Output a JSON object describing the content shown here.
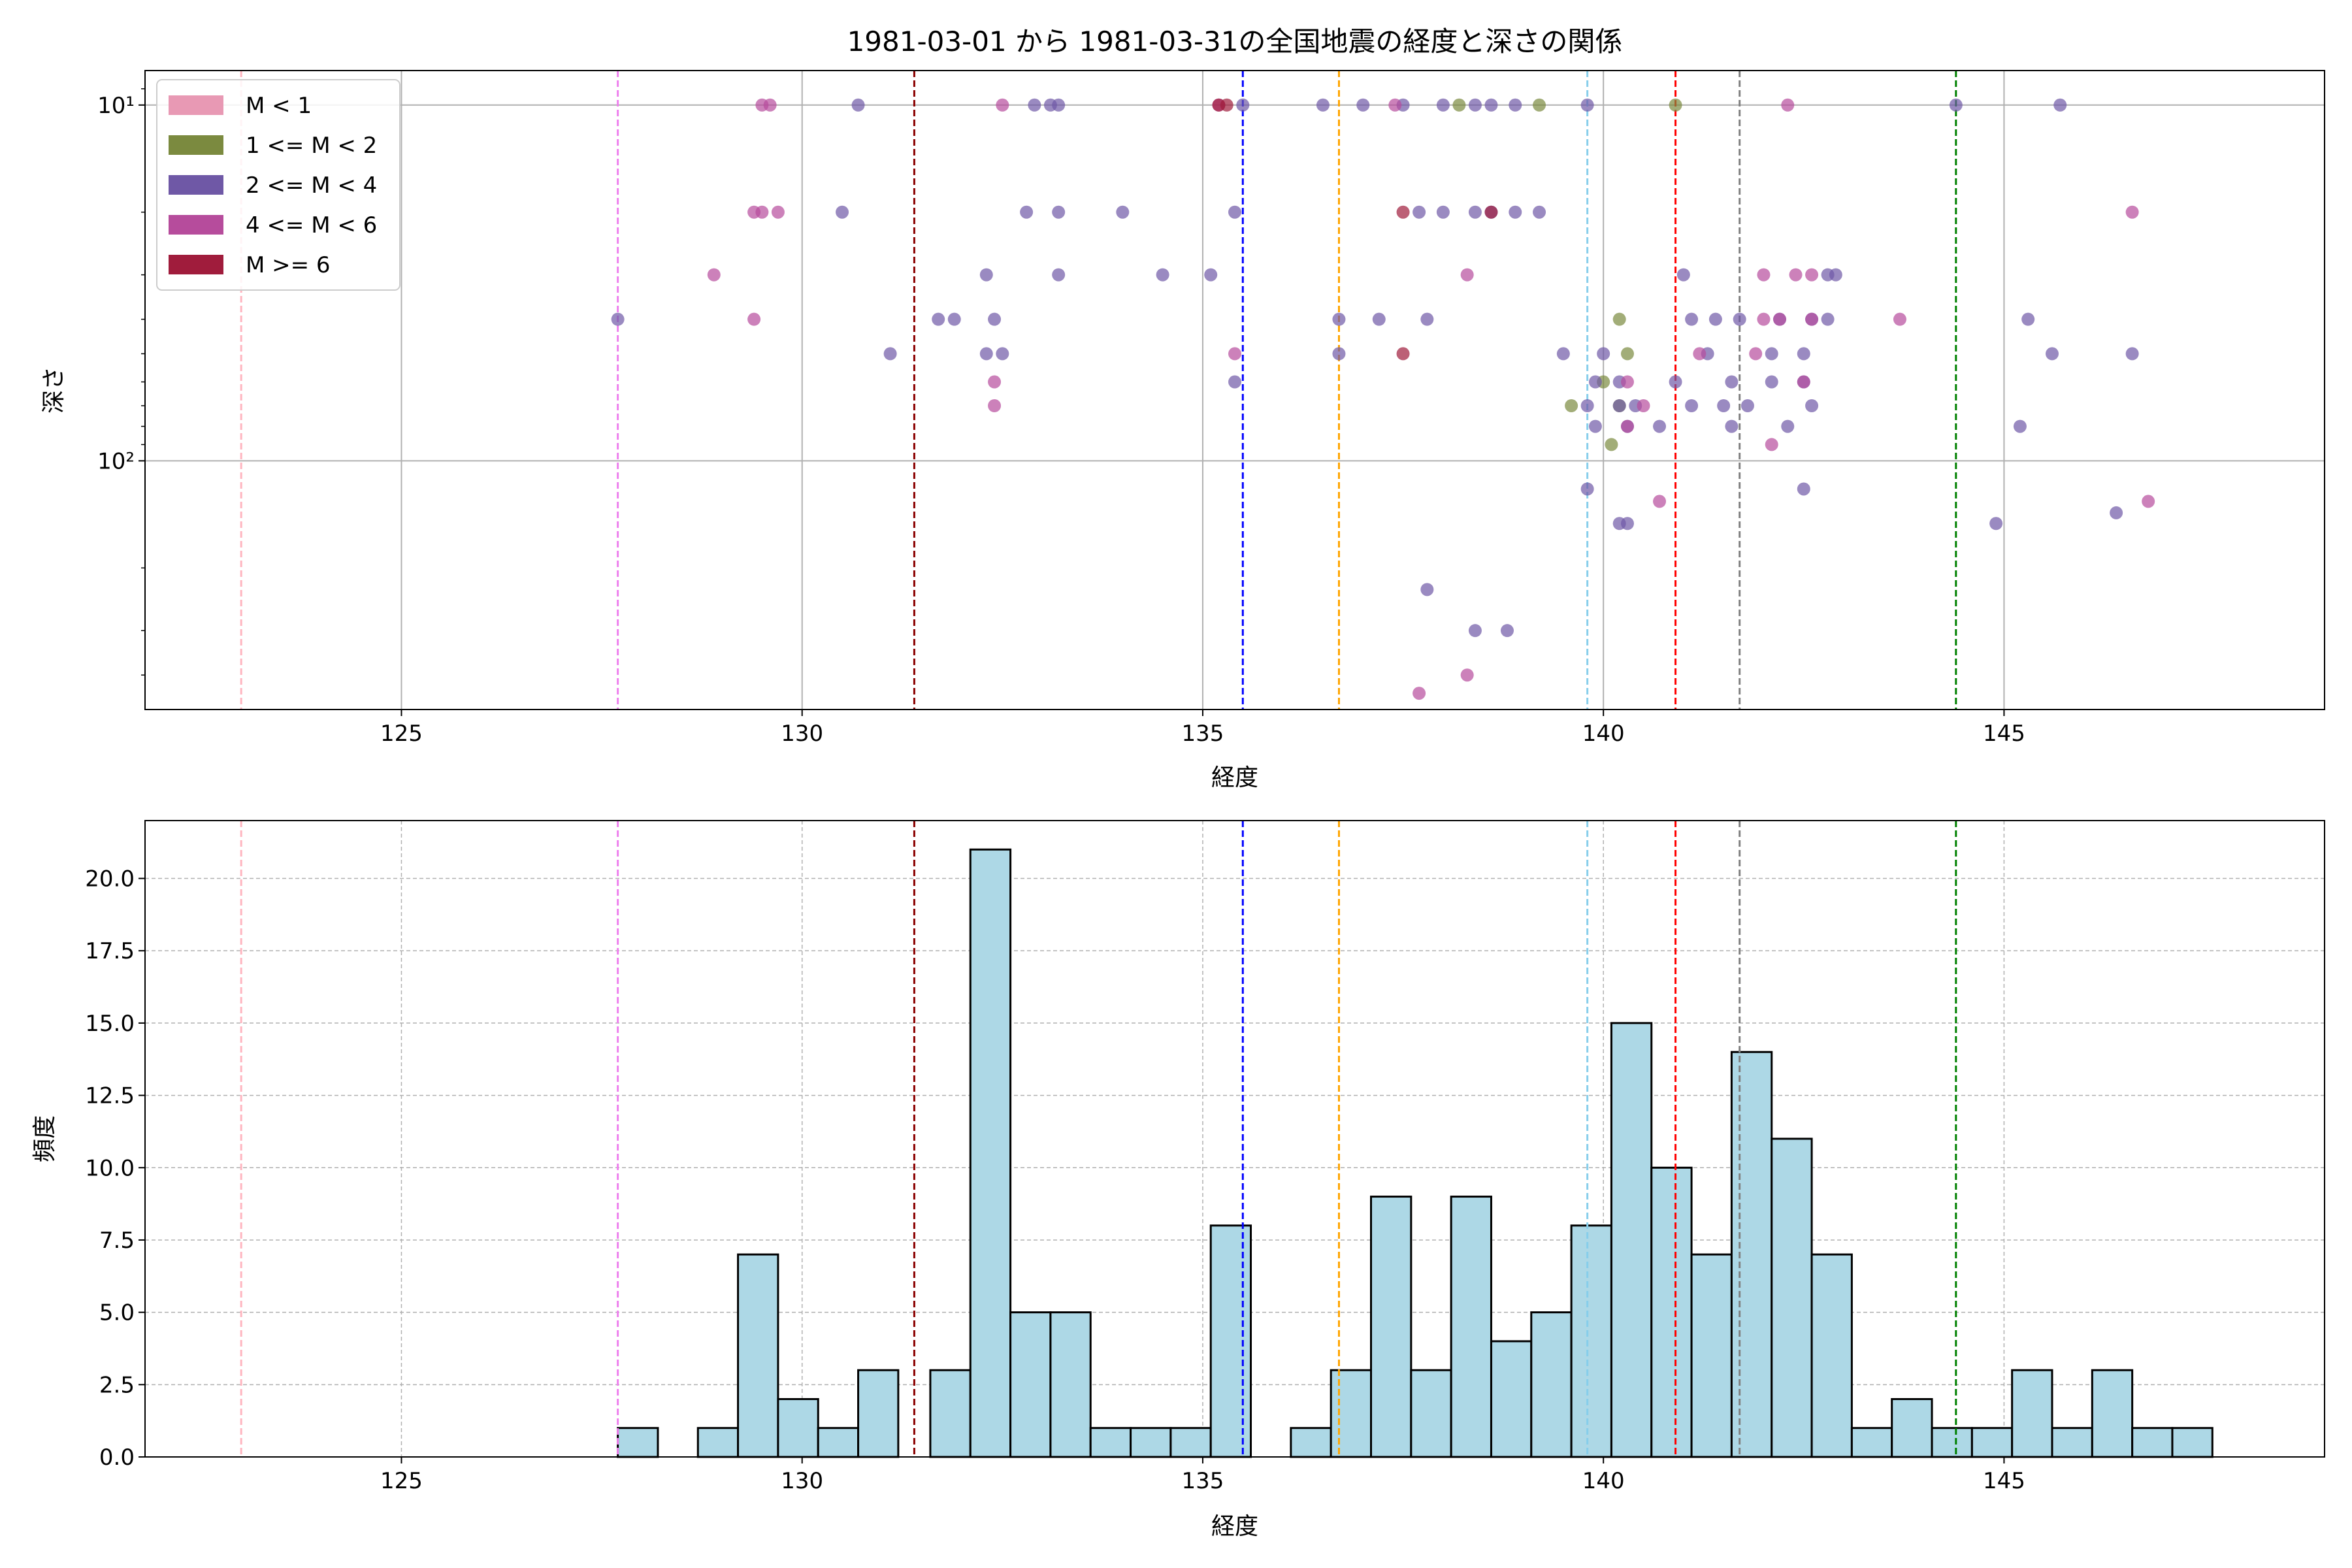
{
  "chart_data": [
    {
      "type": "scatter",
      "title": "1981-03-01 から 1981-03-31の全国地震の経度と深さの関係",
      "xlabel": "経度",
      "ylabel": "深さ",
      "xlim": [
        121.8,
        149.0
      ],
      "ylim": [
        500,
        8
      ],
      "yscale": "log",
      "invert_y": true,
      "x_ticks": [
        125,
        130,
        135,
        140,
        145
      ],
      "y_ticks": [
        {
          "value": 10,
          "label": "10¹"
        },
        {
          "value": 100,
          "label": "10²"
        }
      ],
      "grid": true,
      "legend_position": "upper-left",
      "legend": [
        {
          "label": "M < 1",
          "color": "#e899b4"
        },
        {
          "label": "1 <= M < 2",
          "color": "#7b8a3f"
        },
        {
          "label": "2 <= M < 4",
          "color": "#6f58a6"
        },
        {
          "label": "4 <= M < 6",
          "color": "#b64c9c"
        },
        {
          "label": "M >= 6",
          "color": "#a01c3c"
        }
      ],
      "vlines": [
        {
          "x": 123.0,
          "color": "#ffb6c1"
        },
        {
          "x": 127.7,
          "color": "#ee82ee"
        },
        {
          "x": 131.4,
          "color": "#8b0000"
        },
        {
          "x": 135.5,
          "color": "#0000ff"
        },
        {
          "x": 136.7,
          "color": "#ffa500"
        },
        {
          "x": 139.8,
          "color": "#87ceeb"
        },
        {
          "x": 140.9,
          "color": "#ff0000"
        },
        {
          "x": 141.7,
          "color": "#808080"
        },
        {
          "x": 144.4,
          "color": "#008000"
        }
      ],
      "series": [
        {
          "name": "1 <= M < 2",
          "color": "#7b8a3f",
          "x": [
            138.2,
            139.2,
            140.9,
            140.2,
            140.3,
            140.0,
            139.6,
            140.2,
            140.1
          ],
          "y": [
            10,
            10,
            10,
            40,
            50,
            60,
            70,
            70,
            90
          ]
        },
        {
          "name": "2 <= M < 4",
          "color": "#6f58a6",
          "x": [
            130.7,
            132.9,
            133.1,
            133.2,
            135.5,
            136.5,
            137.0,
            137.5,
            138.0,
            138.4,
            138.6,
            138.9,
            139.8,
            144.4,
            145.7,
            130.5,
            132.8,
            133.2,
            134.0,
            135.4,
            137.7,
            138.0,
            138.4,
            138.6,
            138.9,
            139.2,
            132.3,
            133.2,
            134.5,
            135.1,
            141.0,
            142.8,
            142.9,
            127.7,
            131.7,
            131.9,
            132.4,
            136.7,
            137.2,
            137.8,
            141.1,
            141.4,
            141.7,
            142.2,
            142.6,
            142.8,
            145.3,
            131.1,
            132.3,
            132.5,
            136.7,
            139.5,
            140.0,
            141.3,
            142.1,
            142.5,
            145.6,
            146.6,
            135.4,
            139.9,
            140.2,
            140.9,
            141.6,
            142.5,
            142.1,
            139.8,
            140.4,
            140.2,
            141.1,
            141.5,
            141.8,
            142.6,
            139.9,
            140.3,
            140.7,
            141.6,
            142.3,
            145.2,
            139.8,
            142.5,
            140.2,
            140.3,
            144.9,
            146.4,
            137.8,
            138.4,
            138.8
          ],
          "y": [
            10,
            10,
            10,
            10,
            10,
            10,
            10,
            10,
            10,
            10,
            10,
            10,
            10,
            10,
            10,
            20,
            20,
            20,
            20,
            20,
            20,
            20,
            20,
            20,
            20,
            20,
            30,
            30,
            30,
            30,
            30,
            30,
            30,
            40,
            40,
            40,
            40,
            40,
            40,
            40,
            40,
            40,
            40,
            40,
            40,
            40,
            40,
            50,
            50,
            50,
            50,
            50,
            50,
            50,
            50,
            50,
            50,
            50,
            60,
            60,
            60,
            60,
            60,
            60,
            60,
            70,
            70,
            70,
            70,
            70,
            70,
            70,
            80,
            80,
            80,
            80,
            80,
            80,
            120,
            120,
            150,
            150,
            150,
            140,
            230,
            300,
            300
          ]
        },
        {
          "name": "4 <= M < 6",
          "color": "#b64c9c",
          "x": [
            129.5,
            129.6,
            132.5,
            135.2,
            137.4,
            142.3,
            129.4,
            129.5,
            129.7,
            146.6,
            128.9,
            138.3,
            142.0,
            142.4,
            142.6,
            129.4,
            142.0,
            142.2,
            142.6,
            143.7,
            135.4,
            141.2,
            141.9,
            132.4,
            132.4,
            140.3,
            142.5,
            140.5,
            140.3,
            142.1,
            140.7,
            146.8,
            138.3,
            137.7
          ],
          "y": [
            10,
            10,
            10,
            10,
            10,
            10,
            20,
            20,
            20,
            20,
            30,
            30,
            30,
            30,
            30,
            40,
            40,
            40,
            40,
            40,
            50,
            50,
            50,
            60,
            70,
            60,
            60,
            70,
            80,
            90,
            130,
            130,
            400,
            450
          ]
        },
        {
          "name": "M >= 6",
          "color": "#a01c3c",
          "x": [
            135.2,
            135.3,
            137.5,
            138.6,
            137.5
          ],
          "y": [
            10,
            10,
            20,
            20,
            50
          ]
        }
      ]
    },
    {
      "type": "bar",
      "xlabel": "経度",
      "ylabel": "頻度",
      "xlim": [
        121.8,
        149.0
      ],
      "ylim": [
        0,
        22
      ],
      "x_ticks": [
        125,
        130,
        135,
        140,
        145
      ],
      "y_ticks": [
        0,
        2.5,
        5,
        7.5,
        10,
        12.5,
        15,
        17.5,
        20
      ],
      "y_tick_labels": [
        "0.0",
        "2.5",
        "5.0",
        "7.5",
        "10.0",
        "12.5",
        "15.0",
        "17.5",
        "20.0"
      ],
      "grid": true,
      "bar_color": "#add8e6",
      "bins": [
        [
          127.7,
          128.2,
          1
        ],
        [
          128.7,
          129.2,
          1
        ],
        [
          129.2,
          129.7,
          7
        ],
        [
          129.7,
          130.2,
          2
        ],
        [
          130.2,
          130.7,
          1
        ],
        [
          130.7,
          131.2,
          3
        ],
        [
          131.6,
          132.1,
          3
        ],
        [
          132.1,
          132.6,
          21
        ],
        [
          132.6,
          133.1,
          5
        ],
        [
          133.1,
          133.6,
          5
        ],
        [
          133.6,
          134.1,
          1
        ],
        [
          134.1,
          134.6,
          1
        ],
        [
          134.6,
          135.1,
          1
        ],
        [
          135.1,
          135.6,
          8
        ],
        [
          136.1,
          136.6,
          1
        ],
        [
          136.6,
          137.1,
          3
        ],
        [
          137.1,
          137.6,
          9
        ],
        [
          137.6,
          138.1,
          3
        ],
        [
          138.1,
          138.6,
          9
        ],
        [
          138.6,
          139.1,
          4
        ],
        [
          139.1,
          139.6,
          5
        ],
        [
          139.6,
          140.1,
          8
        ],
        [
          140.1,
          140.6,
          15
        ],
        [
          140.6,
          141.1,
          10
        ],
        [
          141.1,
          141.6,
          7
        ],
        [
          141.6,
          142.1,
          14
        ],
        [
          142.1,
          142.6,
          11
        ],
        [
          142.6,
          143.1,
          7
        ],
        [
          143.1,
          143.6,
          1
        ],
        [
          143.6,
          144.1,
          2
        ],
        [
          144.1,
          144.6,
          1
        ],
        [
          144.6,
          145.1,
          1
        ],
        [
          145.1,
          145.6,
          3
        ],
        [
          145.6,
          146.1,
          1
        ],
        [
          146.1,
          146.6,
          3
        ],
        [
          146.6,
          147.1,
          1
        ],
        [
          147.1,
          147.6,
          1
        ]
      ],
      "vlines": [
        {
          "x": 123.0,
          "color": "#ffb6c1"
        },
        {
          "x": 127.7,
          "color": "#ee82ee"
        },
        {
          "x": 131.4,
          "color": "#8b0000"
        },
        {
          "x": 135.5,
          "color": "#0000ff"
        },
        {
          "x": 136.7,
          "color": "#ffa500"
        },
        {
          "x": 139.8,
          "color": "#87ceeb"
        },
        {
          "x": 140.9,
          "color": "#ff0000"
        },
        {
          "x": 141.7,
          "color": "#808080"
        },
        {
          "x": 144.4,
          "color": "#008000"
        }
      ]
    }
  ]
}
